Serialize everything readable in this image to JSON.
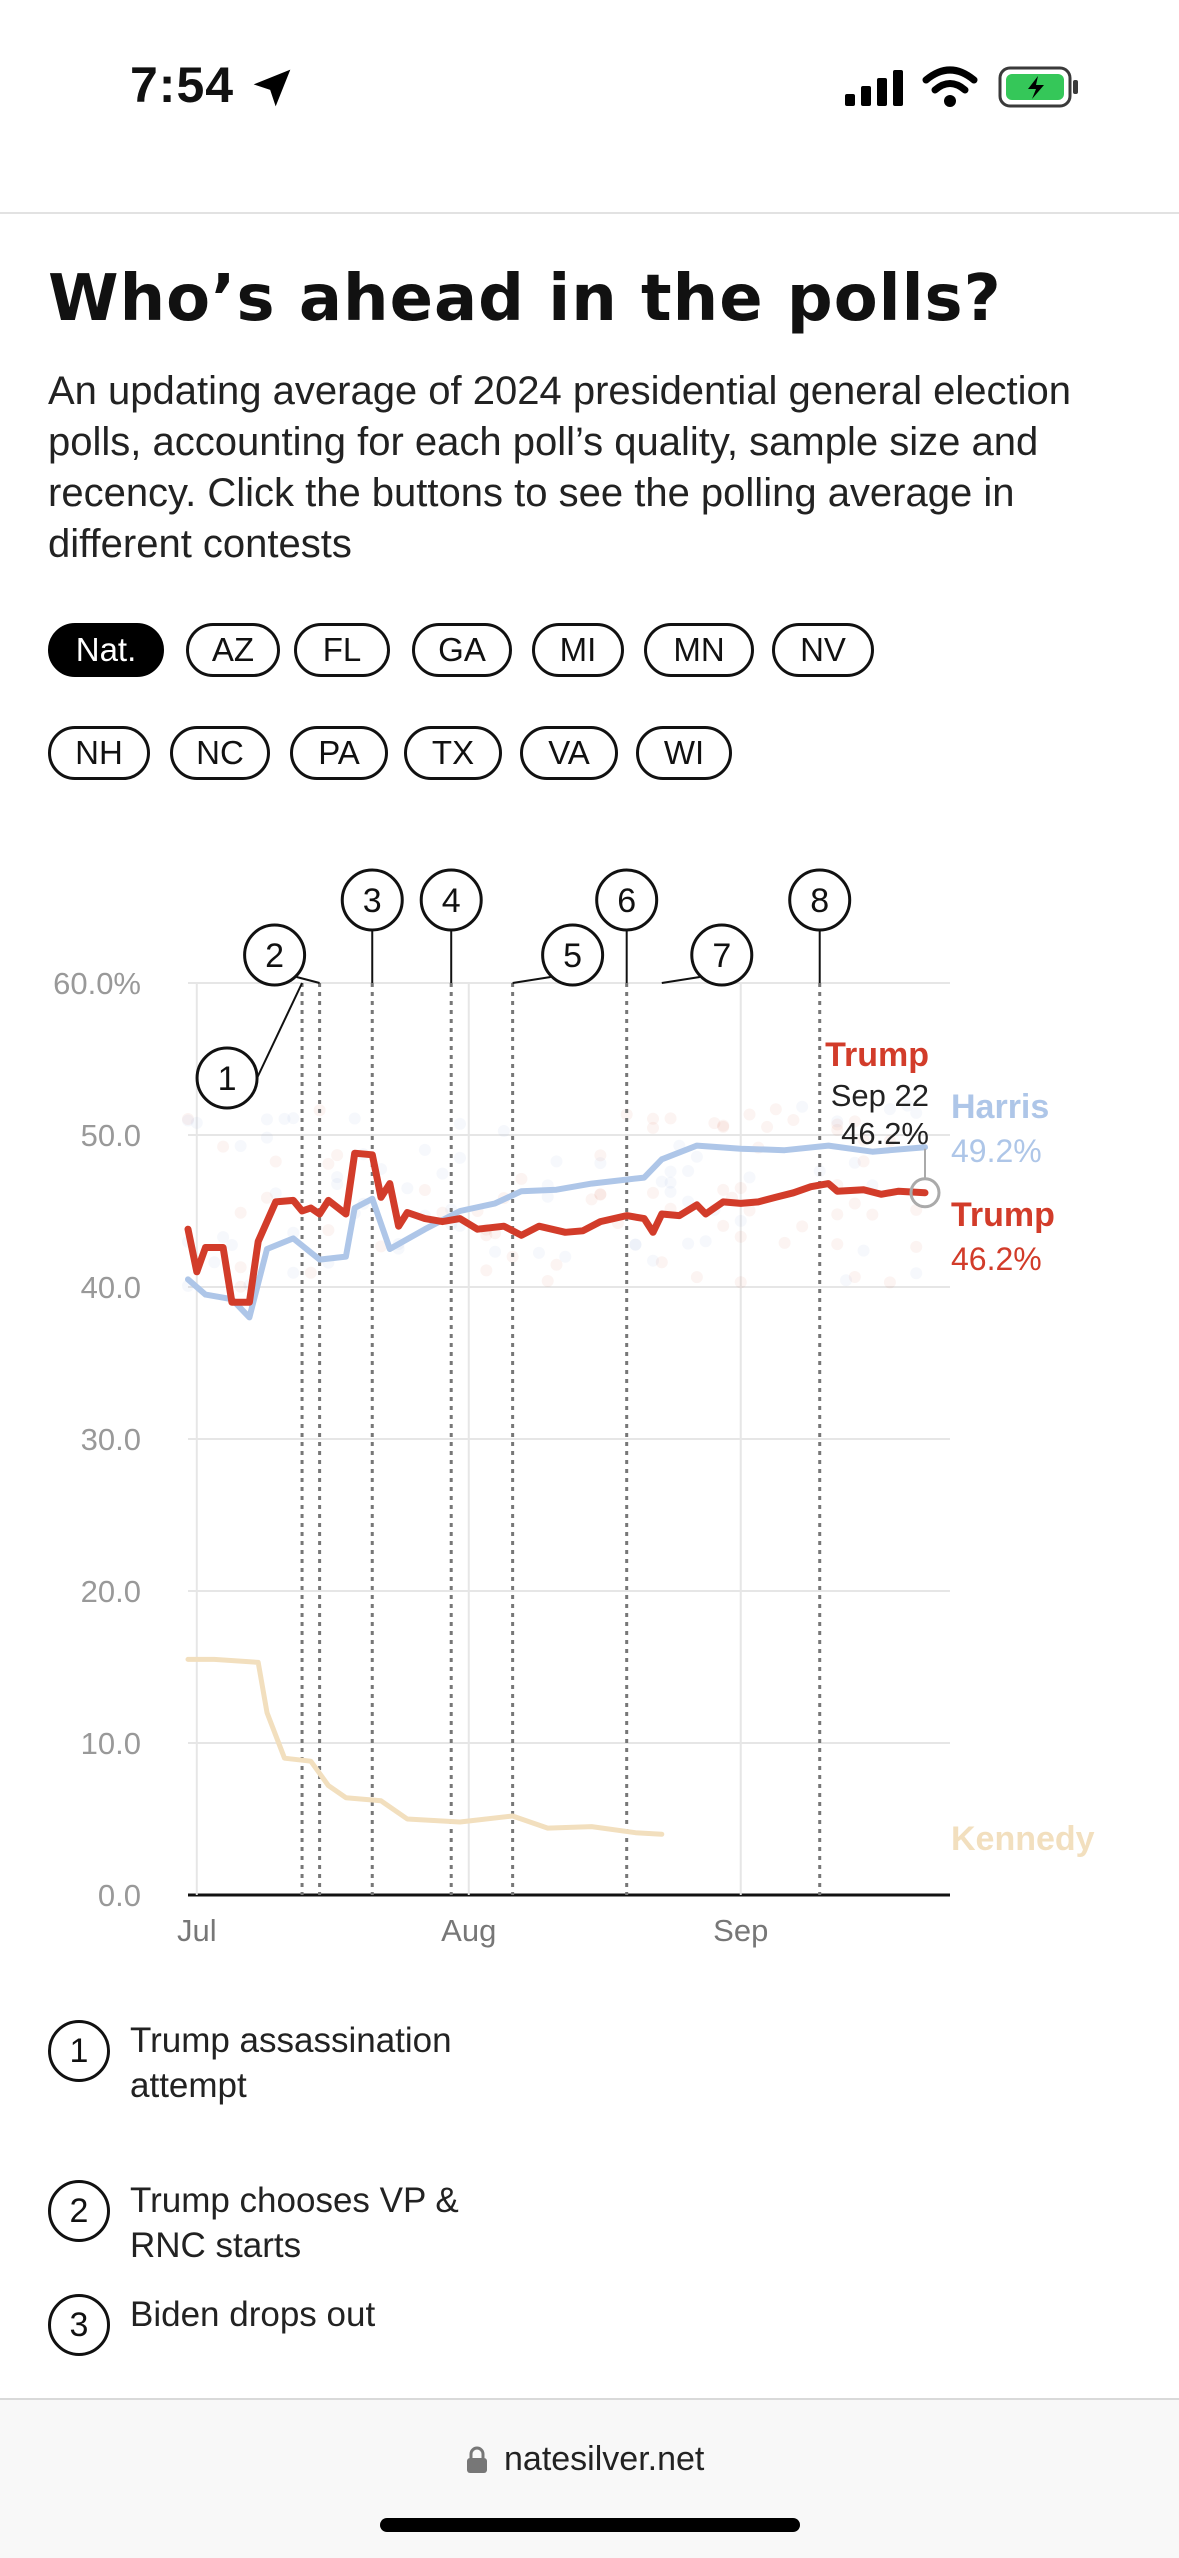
{
  "status_bar": {
    "time": "7:54"
  },
  "title": "Who’s ahead in the polls?",
  "description": "An updating average of 2024 presidential general election polls, accounting for each poll’s quality, sample size and recency. Click the buttons to see the polling average in different contests",
  "filters": [
    "Nat.",
    "AZ",
    "FL",
    "GA",
    "MI",
    "MN",
    "NV",
    "NH",
    "NC",
    "PA",
    "TX",
    "VA",
    "WI"
  ],
  "active_filter": "Nat.",
  "chart_data": {
    "type": "line",
    "x_axis_labels": [
      "Jul",
      "Aug",
      "Sep"
    ],
    "x_start": "2024-06-30",
    "x_end": "2024-09-22",
    "ylim": [
      0,
      60
    ],
    "y_ticks": [
      "60.0%",
      "50.0",
      "40.0",
      "30.0",
      "20.0",
      "10.0",
      "0.0"
    ],
    "grid": true,
    "series": [
      {
        "name": "Trump",
        "color": "#d23c2a",
        "end_label": "46.2%",
        "points": [
          [
            "2024-06-30",
            43.8
          ],
          [
            "2024-07-01",
            41.0
          ],
          [
            "2024-07-02",
            42.6
          ],
          [
            "2024-07-04",
            42.6
          ],
          [
            "2024-07-05",
            39.0
          ],
          [
            "2024-07-07",
            39.0
          ],
          [
            "2024-07-08",
            43.0
          ],
          [
            "2024-07-10",
            45.6
          ],
          [
            "2024-07-12",
            45.7
          ],
          [
            "2024-07-13",
            45.0
          ],
          [
            "2024-07-14",
            45.2
          ],
          [
            "2024-07-15",
            44.8
          ],
          [
            "2024-07-16",
            45.7
          ],
          [
            "2024-07-18",
            44.8
          ],
          [
            "2024-07-19",
            48.8
          ],
          [
            "2024-07-21",
            48.7
          ],
          [
            "2024-07-22",
            45.9
          ],
          [
            "2024-07-23",
            46.8
          ],
          [
            "2024-07-24",
            44.0
          ],
          [
            "2024-07-25",
            44.9
          ],
          [
            "2024-07-27",
            44.5
          ],
          [
            "2024-07-29",
            44.3
          ],
          [
            "2024-07-31",
            44.5
          ],
          [
            "2024-08-02",
            43.8
          ],
          [
            "2024-08-05",
            44.0
          ],
          [
            "2024-08-07",
            43.4
          ],
          [
            "2024-08-09",
            44.0
          ],
          [
            "2024-08-12",
            43.6
          ],
          [
            "2024-08-14",
            43.7
          ],
          [
            "2024-08-16",
            44.3
          ],
          [
            "2024-08-19",
            44.7
          ],
          [
            "2024-08-21",
            44.5
          ],
          [
            "2024-08-22",
            43.6
          ],
          [
            "2024-08-23",
            44.8
          ],
          [
            "2024-08-25",
            44.7
          ],
          [
            "2024-08-27",
            45.4
          ],
          [
            "2024-08-28",
            44.8
          ],
          [
            "2024-08-30",
            45.6
          ],
          [
            "2024-09-01",
            45.5
          ],
          [
            "2024-09-03",
            45.6
          ],
          [
            "2024-09-05",
            45.9
          ],
          [
            "2024-09-07",
            46.2
          ],
          [
            "2024-09-09",
            46.6
          ],
          [
            "2024-09-11",
            46.8
          ],
          [
            "2024-09-12",
            46.3
          ],
          [
            "2024-09-15",
            46.4
          ],
          [
            "2024-09-17",
            46.1
          ],
          [
            "2024-09-19",
            46.3
          ],
          [
            "2024-09-22",
            46.2
          ]
        ]
      },
      {
        "name": "Harris",
        "color": "#aec6e8",
        "end_label": "49.2%",
        "points": [
          [
            "2024-06-30",
            40.5
          ],
          [
            "2024-07-02",
            39.5
          ],
          [
            "2024-07-05",
            39.2
          ],
          [
            "2024-07-07",
            38.0
          ],
          [
            "2024-07-09",
            42.5
          ],
          [
            "2024-07-12",
            43.2
          ],
          [
            "2024-07-15",
            41.8
          ],
          [
            "2024-07-18",
            42.0
          ],
          [
            "2024-07-19",
            45.2
          ],
          [
            "2024-07-21",
            45.8
          ],
          [
            "2024-07-23",
            42.5
          ],
          [
            "2024-07-27",
            43.8
          ],
          [
            "2024-07-31",
            45.0
          ],
          [
            "2024-08-04",
            45.5
          ],
          [
            "2024-08-07",
            46.3
          ],
          [
            "2024-08-11",
            46.4
          ],
          [
            "2024-08-15",
            46.8
          ],
          [
            "2024-08-21",
            47.2
          ],
          [
            "2024-08-23",
            48.4
          ],
          [
            "2024-08-27",
            49.3
          ],
          [
            "2024-09-01",
            49.1
          ],
          [
            "2024-09-06",
            49.0
          ],
          [
            "2024-09-11",
            49.3
          ],
          [
            "2024-09-16",
            48.9
          ],
          [
            "2024-09-22",
            49.2
          ]
        ]
      },
      {
        "name": "Kennedy",
        "color": "#f2dfbe",
        "points": [
          [
            "2024-06-30",
            15.5
          ],
          [
            "2024-07-03",
            15.5
          ],
          [
            "2024-07-08",
            15.3
          ],
          [
            "2024-07-09",
            12.0
          ],
          [
            "2024-07-11",
            9.0
          ],
          [
            "2024-07-14",
            8.8
          ],
          [
            "2024-07-16",
            7.2
          ],
          [
            "2024-07-18",
            6.4
          ],
          [
            "2024-07-22",
            6.2
          ],
          [
            "2024-07-25",
            5.0
          ],
          [
            "2024-07-31",
            4.8
          ],
          [
            "2024-08-06",
            5.2
          ],
          [
            "2024-08-10",
            4.4
          ],
          [
            "2024-08-15",
            4.5
          ],
          [
            "2024-08-20",
            4.1
          ],
          [
            "2024-08-23",
            4.0
          ]
        ]
      }
    ],
    "events": [
      {
        "num": "1",
        "date": "2024-07-13"
      },
      {
        "num": "2",
        "date": "2024-07-15"
      },
      {
        "num": "3",
        "date": "2024-07-21"
      },
      {
        "num": "4",
        "date": "2024-07-30"
      },
      {
        "num": "5",
        "date": "2024-08-06"
      },
      {
        "num": "6",
        "date": "2024-08-19"
      },
      {
        "num": "7",
        "date": "2024-08-23"
      },
      {
        "num": "8",
        "date": "2024-09-10"
      }
    ],
    "tooltip": {
      "name": "Trump",
      "date": "Sep 22",
      "value": "46.2%"
    }
  },
  "legend": [
    {
      "num": "1",
      "text": "Trump assassination attempt"
    },
    {
      "num": "2",
      "text": "Trump chooses VP & RNC starts"
    },
    {
      "num": "3",
      "text": "Biden drops out"
    }
  ],
  "browser": {
    "url": "natesilver.net"
  },
  "colors": {
    "trump": "#d23c2a",
    "harris": "#aec6e8",
    "kennedy": "#f2dfbe"
  }
}
